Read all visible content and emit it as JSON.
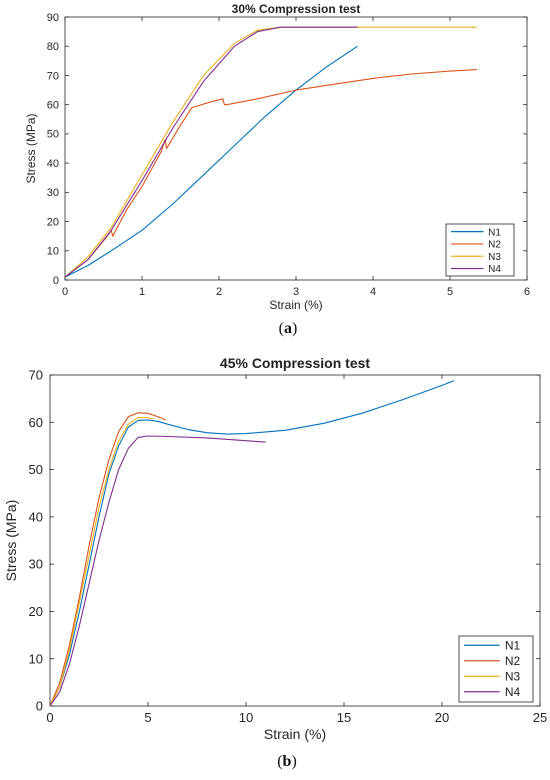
{
  "chart_data": [
    {
      "type": "line",
      "title": "30% Compression test",
      "xlabel": "Strain (%)",
      "ylabel": "Stress (MPa)",
      "xlim": [
        0,
        6
      ],
      "ylim": [
        0,
        90
      ],
      "xticks": [
        0,
        1,
        2,
        3,
        4,
        5,
        6
      ],
      "yticks": [
        0,
        10,
        20,
        30,
        40,
        50,
        60,
        70,
        80,
        90
      ],
      "grid": false,
      "legend": "bottom-right",
      "caption": "(a)",
      "series": [
        {
          "name": "N1",
          "color": "#0072BD",
          "x": [
            0,
            0.3,
            0.6,
            1.0,
            1.4,
            1.8,
            2.2,
            2.6,
            3.0,
            3.4,
            3.8
          ],
          "y": [
            1,
            5,
            10,
            17,
            26,
            36,
            46,
            56,
            65,
            73,
            80
          ]
        },
        {
          "name": "N2",
          "color": "#D95319",
          "x": [
            0,
            0.3,
            0.55,
            0.6,
            0.62,
            0.8,
            1.0,
            1.25,
            1.3,
            1.32,
            1.5,
            1.65,
            1.9,
            2.05,
            2.07,
            2.1,
            2.5,
            3.0,
            3.5,
            4.0,
            4.5,
            5.0,
            5.35
          ],
          "y": [
            1,
            7,
            15,
            17,
            15,
            24,
            32,
            44,
            48,
            45,
            53,
            59,
            61,
            62,
            60,
            60,
            62,
            65,
            67,
            69,
            70.5,
            71.5,
            72
          ]
        },
        {
          "name": "N3",
          "color": "#EDB120",
          "x": [
            0,
            0.3,
            0.6,
            1.0,
            1.4,
            1.8,
            2.2,
            2.5,
            2.8,
            3.2,
            4.0,
            5.0,
            5.35
          ],
          "y": [
            1,
            8,
            18,
            36,
            54,
            70,
            81,
            85.5,
            86.5,
            86.5,
            86.5,
            86.5,
            86.5
          ]
        },
        {
          "name": "N4",
          "color": "#7E2F8E",
          "x": [
            0,
            0.3,
            0.6,
            1.0,
            1.4,
            1.8,
            2.2,
            2.5,
            2.8,
            3.2,
            3.8
          ],
          "y": [
            1,
            7,
            17,
            34,
            52,
            68,
            80,
            85,
            86.5,
            86.5,
            86.5
          ]
        }
      ]
    },
    {
      "type": "line",
      "title": "45% Compression test",
      "xlabel": "Strain (%)",
      "ylabel": "Stress (MPa)",
      "xlim": [
        0,
        25
      ],
      "ylim": [
        0,
        70
      ],
      "xticks": [
        0,
        5,
        10,
        15,
        20,
        25
      ],
      "yticks": [
        0,
        10,
        20,
        30,
        40,
        50,
        60,
        70
      ],
      "grid": false,
      "legend": "bottom-right",
      "caption": "(b)",
      "series": [
        {
          "name": "N1",
          "color": "#0072BD",
          "x": [
            0,
            0.5,
            1,
            1.5,
            2,
            2.5,
            3,
            3.5,
            4,
            4.5,
            5,
            5.5,
            6,
            7,
            8,
            9,
            10,
            12,
            14,
            16,
            18,
            20,
            20.6
          ],
          "y": [
            0,
            4,
            11,
            20,
            30,
            40,
            49,
            55,
            59,
            60.4,
            60.5,
            60.2,
            59.6,
            58.5,
            57.8,
            57.5,
            57.6,
            58.3,
            59.8,
            62,
            64.8,
            67.8,
            68.8
          ]
        },
        {
          "name": "N2",
          "color": "#D95319",
          "x": [
            0,
            0.5,
            1,
            1.5,
            2,
            2.5,
            3,
            3.5,
            4,
            4.5,
            5,
            5.5,
            5.9
          ],
          "y": [
            0,
            5,
            13,
            23,
            34,
            44,
            52,
            58,
            61.2,
            62,
            61.9,
            61.2,
            60.5
          ]
        },
        {
          "name": "N3",
          "color": "#EDB120",
          "x": [
            0,
            0.5,
            1,
            1.5,
            2,
            2.5,
            3,
            3.5,
            4,
            4.5,
            5,
            5.3
          ],
          "y": [
            0,
            4,
            12,
            22,
            32,
            42,
            50,
            56,
            59.6,
            61,
            61,
            60.7
          ]
        },
        {
          "name": "N4",
          "color": "#7E2F8E",
          "x": [
            0,
            0.5,
            1,
            1.5,
            2,
            2.5,
            3,
            3.5,
            4,
            4.5,
            5,
            6,
            8,
            10,
            11
          ],
          "y": [
            0,
            3,
            9,
            17,
            26,
            35,
            43,
            50,
            54.5,
            56.8,
            57.1,
            57,
            56.7,
            56.1,
            55.8
          ]
        }
      ]
    }
  ]
}
